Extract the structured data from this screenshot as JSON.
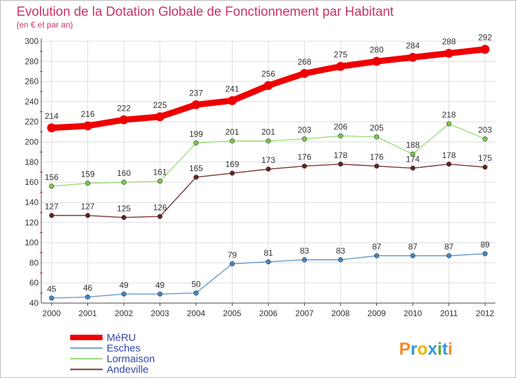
{
  "chart_data": {
    "type": "line",
    "title": "Evolution de la Dotation Globale de Fonctionnement par Habitant",
    "subtitle": "(en € et par an)",
    "xlabel": "",
    "ylabel": "",
    "x": [
      2000,
      2001,
      2002,
      2003,
      2004,
      2005,
      2006,
      2007,
      2008,
      2009,
      2010,
      2011,
      2012
    ],
    "x_labels": [
      "2000",
      "2001",
      "2002",
      "2003",
      "2004",
      "2005",
      "2006",
      "2007",
      "2008",
      "2009",
      "2010",
      "2011",
      "2012"
    ],
    "ylim": [
      40,
      300
    ],
    "yticks": [
      40,
      60,
      80,
      100,
      120,
      140,
      160,
      180,
      200,
      220,
      240,
      260,
      280,
      300
    ],
    "ytick_labels": [
      "40",
      "60",
      "80",
      "100",
      "120",
      "140",
      "160",
      "180",
      "200",
      "220",
      "240",
      "260",
      "280",
      "300"
    ],
    "grid": true,
    "legend_position": "bottom-left",
    "series": [
      {
        "name": "MéRU",
        "color": "#ee0000",
        "marker_fill": "#ee0000",
        "values": [
          214,
          216,
          222,
          225,
          237,
          241,
          256,
          268,
          275,
          280,
          284,
          288,
          292
        ]
      },
      {
        "name": "Esches",
        "color": "#6699cc",
        "marker_fill": "#3d88cc",
        "values": [
          45,
          46,
          49,
          49,
          50,
          79,
          81,
          83,
          83,
          87,
          87,
          87,
          89
        ]
      },
      {
        "name": "Lormaison",
        "color": "#99dd77",
        "marker_fill": "#77cc44",
        "values": [
          156,
          159,
          160,
          161,
          199,
          201,
          201,
          203,
          206,
          205,
          188,
          218,
          203
        ]
      },
      {
        "name": "Andeville",
        "color": "#773333",
        "marker_fill": "#662222",
        "values": [
          127,
          127,
          125,
          126,
          165,
          169,
          173,
          176,
          178,
          176,
          174,
          178,
          175
        ]
      }
    ]
  },
  "colors": {
    "title": "#cc3366",
    "subtitle": "#cc3366",
    "legend_text": "#3344aa",
    "grid": "#dddddd",
    "axis": "#444444",
    "tick_marks": "#cc3333"
  },
  "brand": {
    "logo_text": "Proxiti"
  }
}
